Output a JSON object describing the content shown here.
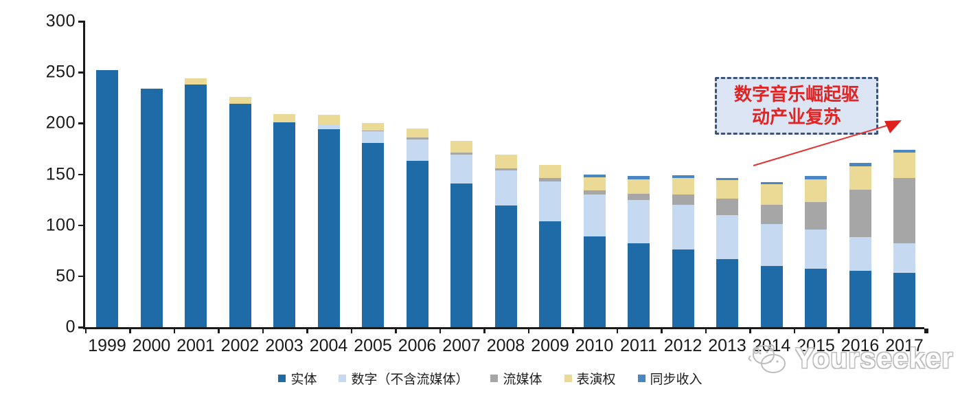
{
  "chart_data": {
    "type": "bar",
    "stacked": true,
    "title": "",
    "xlabel": "",
    "ylabel": "",
    "ylim": [
      0,
      300
    ],
    "yticks": [
      0,
      50,
      100,
      150,
      200,
      250,
      300
    ],
    "grid": false,
    "legend_position": "bottom",
    "categories": [
      "1999",
      "2000",
      "2001",
      "2002",
      "2003",
      "2004",
      "2005",
      "2006",
      "2007",
      "2008",
      "2009",
      "2010",
      "2011",
      "2012",
      "2013",
      "2014",
      "2015",
      "2016",
      "2017"
    ],
    "series": [
      {
        "name": "实体",
        "color": "#1f6ba8",
        "values": [
          252,
          234,
          238,
          219,
          201,
          194,
          181,
          163,
          141,
          119,
          104,
          89,
          82,
          76,
          67,
          60,
          57,
          55,
          53
        ]
      },
      {
        "name": "数字（不含流媒体）",
        "color": "#c5d9f0",
        "values": [
          0,
          0,
          0,
          0,
          0,
          4,
          11,
          21,
          28,
          35,
          39,
          41,
          43,
          44,
          43,
          41,
          39,
          33,
          29
        ]
      },
      {
        "name": "流媒体",
        "color": "#a6a6a6",
        "values": [
          0,
          0,
          0,
          0,
          0,
          0,
          1,
          2,
          2,
          2,
          3,
          4,
          6,
          10,
          16,
          19,
          27,
          47,
          64
        ]
      },
      {
        "name": "表演权",
        "color": "#ebd996",
        "values": [
          0,
          0,
          6,
          7,
          8,
          10,
          7,
          9,
          12,
          13,
          13,
          13,
          14,
          16,
          18,
          20,
          22,
          23,
          25
        ]
      },
      {
        "name": "同步收入",
        "color": "#4a87c2",
        "values": [
          0,
          0,
          0,
          0,
          0,
          0,
          0,
          0,
          0,
          0,
          0,
          3,
          3,
          3,
          2,
          2,
          3,
          3,
          3
        ]
      }
    ]
  },
  "annotation": {
    "line1": "数字音乐崛起驱",
    "line2": "动产业复苏",
    "text_color": "#e02424",
    "box_fill": "#dbe5f3",
    "box_border": "#3a5578",
    "arrow_color": "#e83030"
  },
  "watermark": {
    "text": "Yourseeker",
    "color": "#bdbdbd"
  }
}
